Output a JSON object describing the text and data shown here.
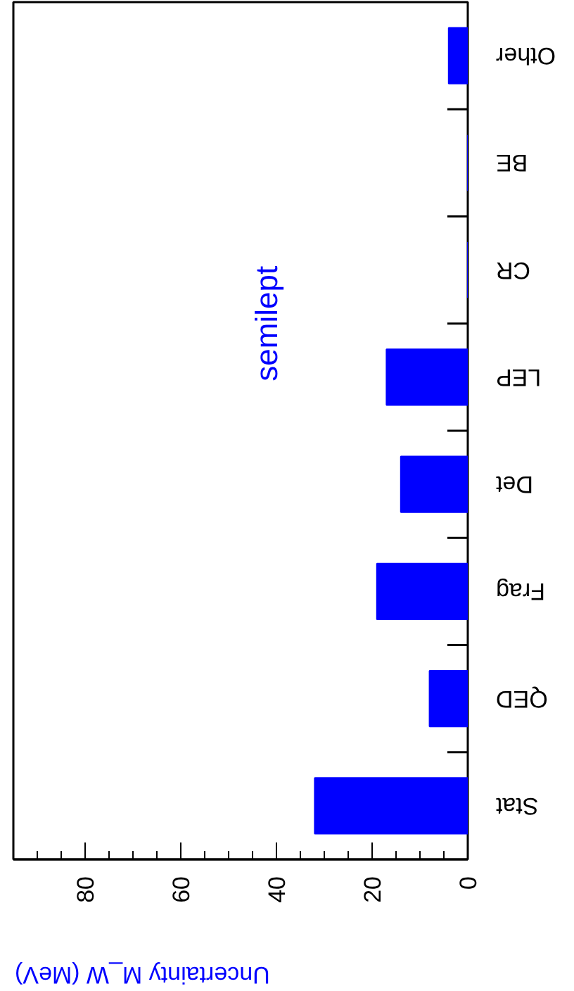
{
  "chart_data": {
    "type": "bar",
    "orientation": "horizontal",
    "title": "semilept",
    "xlabel": "Uncertainty M_W (MeV)",
    "categories": [
      "Other",
      "BE",
      "CR",
      "LEP",
      "Det",
      "Frag",
      "QED",
      "Stat"
    ],
    "values": [
      4,
      0,
      0,
      17,
      14,
      19,
      8,
      32
    ],
    "color": "#0000ff",
    "xlim": [
      95,
      0
    ],
    "xticks": [
      0,
      20,
      40,
      60,
      80
    ],
    "grid": false
  }
}
